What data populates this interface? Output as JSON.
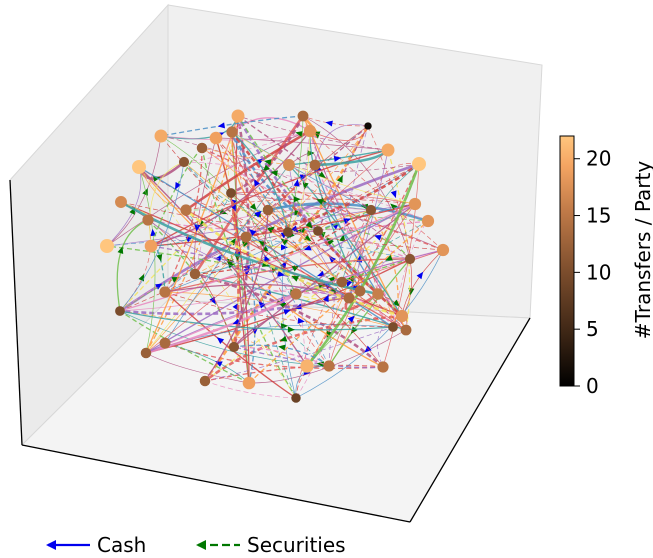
{
  "colorbar": {
    "label": "#Transfers / Party",
    "ticks": [
      "0",
      "5",
      "10",
      "15",
      "20"
    ],
    "range": [
      0,
      22
    ],
    "colormap": [
      "#000000",
      "#3a2414",
      "#7a4c2c",
      "#b87444",
      "#f0a05e",
      "#ffc67e"
    ]
  },
  "legend": {
    "cash_label": "Cash",
    "securities_label": "Securities",
    "cash_color": "#0000ee",
    "securities_color": "#007700"
  },
  "edge_palette": [
    "#e05a5a",
    "#4a8ec6",
    "#e887c0",
    "#f2e55c",
    "#6fbf4a",
    "#9a6ac2",
    "#ff9a3c",
    "#d04040",
    "#3aa0a0",
    "#b05080"
  ],
  "pane_color": "#f2f2f2"
}
